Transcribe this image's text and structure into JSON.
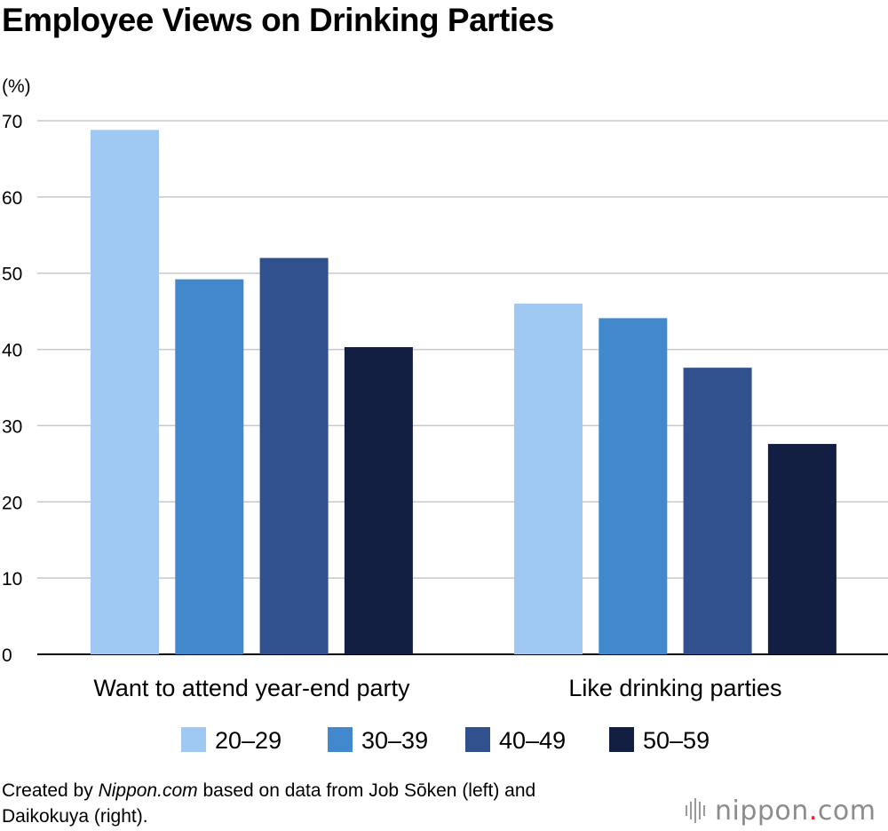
{
  "title": "Employee Views on Drinking Parties",
  "chart_data": {
    "type": "bar",
    "title": "Employee Views on Drinking Parties",
    "unit_label": "(%)",
    "categories": [
      "Want to attend year-end party",
      "Like drinking parties"
    ],
    "series": [
      {
        "name": "20–29",
        "values": [
          68.8,
          46.0
        ]
      },
      {
        "name": "30–39",
        "values": [
          49.2,
          44.1
        ]
      },
      {
        "name": "40–49",
        "values": [
          52.0,
          37.6
        ]
      },
      {
        "name": "50–59",
        "values": [
          40.3,
          27.6
        ]
      }
    ],
    "ylim": [
      0,
      70
    ],
    "yticks": [
      0,
      10,
      20,
      30,
      40,
      50,
      60,
      70
    ],
    "grid": true,
    "legend_position": "bottom",
    "colors": [
      "#9fc8f2",
      "#4189cc",
      "#30508e",
      "#131f42"
    ]
  },
  "footer": {
    "prefix": "Created by ",
    "source_italic": "Nippon.com",
    "suffix": " based on data from Job Sōken (left) and",
    "line2": "Daikokuya (right)."
  },
  "logo": {
    "text_main": "nippon",
    "text_dot": ".",
    "text_end": "com",
    "dot_color": "#e8202a"
  }
}
